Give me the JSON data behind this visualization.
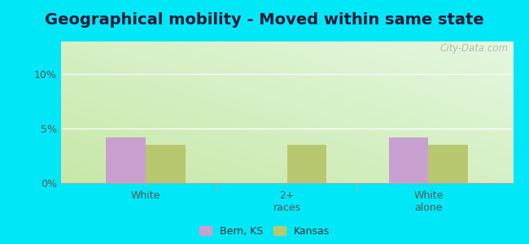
{
  "title": "Geographical mobility - Moved within same state",
  "categories": [
    "White",
    "2+\nraces",
    "White\nalone"
  ],
  "bern_ks_values": [
    4.2,
    0.0,
    4.2
  ],
  "kansas_values": [
    3.5,
    3.5,
    3.5
  ],
  "bern_color": "#c8a0d0",
  "kansas_color": "#b8c870",
  "ylim": [
    0,
    13
  ],
  "yticks": [
    0,
    5,
    10
  ],
  "ytick_labels": [
    "0%",
    "5%",
    "10%"
  ],
  "outer_background": "#00e8f8",
  "title_fontsize": 14,
  "legend_labels": [
    "Bern, KS",
    "Kansas"
  ],
  "bar_width": 0.28,
  "watermark": "City-Data.com",
  "grad_bottom_left": "#b8e8a0",
  "grad_top_right": "#f4faf0"
}
